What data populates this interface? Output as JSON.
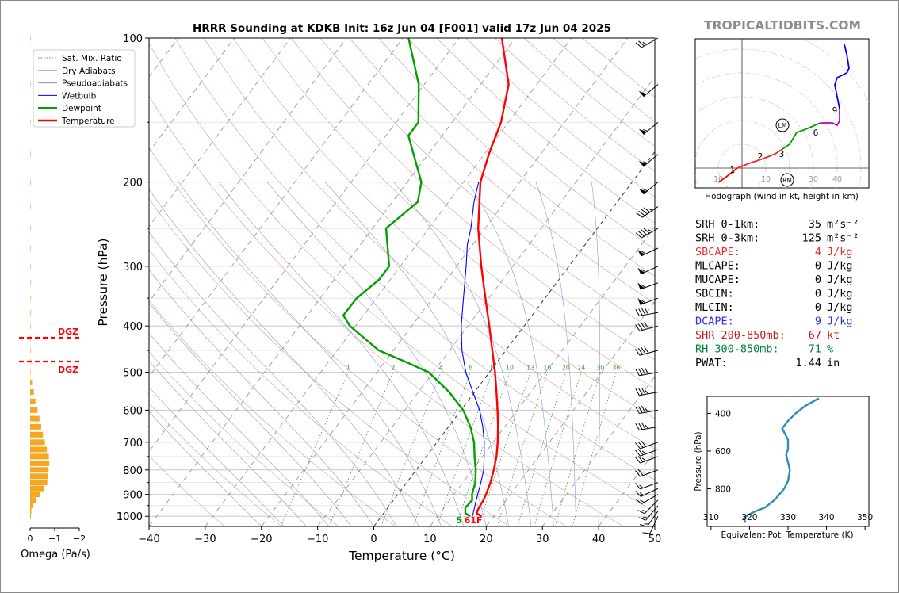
{
  "header": {
    "title": "HRRR Sounding at KDKB Init: 16z Jun 04 [F001] valid 17z Jun 04 2025",
    "watermark": "TROPICALTIDBITS.COM"
  },
  "colors": {
    "temperature": "#ff0000",
    "dewpoint": "#00a000",
    "wetbulb": "#0000ff",
    "omega_bar": "#f5a623",
    "theta_e": "#2e8fb0",
    "hodo_0_1": "#ff0000",
    "hodo_1_3": "#ff2020",
    "hodo_3_6": "#00a000",
    "hodo_6_9": "#c000c0",
    "hodo_9_12": "#0000ff",
    "dry_adiabat": "#d08080",
    "moist_adiabat": "#8080d0",
    "mixing_ratio": "#3a9a3a"
  },
  "legend": {
    "items": [
      {
        "label": "Sat. Mix. Ratio",
        "style": "dotted",
        "color": "#3a9a3a"
      },
      {
        "label": "Dry Adiabats",
        "style": "solid",
        "color": "#d09090"
      },
      {
        "label": "Pseudoadiabats",
        "style": "solid",
        "color": "#9090c0"
      },
      {
        "label": "Wetbulb",
        "style": "solid",
        "color": "#0000ff"
      },
      {
        "label": "Dewpoint",
        "style": "bold",
        "color": "#00a000"
      },
      {
        "label": "Temperature",
        "style": "bold",
        "color": "#ff0000"
      }
    ]
  },
  "chart_data": [
    {
      "type": "line",
      "name": "skew-t",
      "xlabel": "Temperature (°C)",
      "ylabel": "Pressure (hPa)",
      "xlim": [
        -40,
        50
      ],
      "ylim": [
        1050,
        100
      ],
      "log_y": true,
      "skew_deg_per_decade": 45,
      "x_ticks": [
        -40,
        -30,
        -20,
        -10,
        0,
        10,
        20,
        30,
        40,
        50
      ],
      "y_ticks": [
        100,
        200,
        300,
        400,
        500,
        600,
        700,
        800,
        900,
        1000
      ],
      "mixing_ratio_labels": [
        "1",
        "2",
        "4",
        "6",
        "8",
        "10",
        "13",
        "16",
        "20",
        "24",
        "30",
        "36"
      ],
      "mixing_ratio_values": [
        1,
        2,
        4,
        6,
        8,
        10,
        13,
        16,
        20,
        24,
        30,
        36
      ],
      "surface_dewpoint_label": "5",
      "surface_temp_label": "61F",
      "series": [
        {
          "name": "Temperature",
          "points": [
            [
              1000,
              17.8
            ],
            [
              985,
              16.5
            ],
            [
              960,
              16.2
            ],
            [
              925,
              16.0
            ],
            [
              900,
              15.7
            ],
            [
              850,
              14.9
            ],
            [
              800,
              13.8
            ],
            [
              750,
              12.5
            ],
            [
              700,
              10.8
            ],
            [
              650,
              8.8
            ],
            [
              600,
              6.5
            ],
            [
              550,
              3.9
            ],
            [
              500,
              1.0
            ],
            [
              450,
              -2.4
            ],
            [
              400,
              -6.2
            ],
            [
              350,
              -10.6
            ],
            [
              300,
              -15.6
            ],
            [
              250,
              -21.2
            ],
            [
              200,
              -27.0
            ],
            [
              175,
              -29.2
            ],
            [
              150,
              -31.3
            ],
            [
              125,
              -35.0
            ],
            [
              100,
              -42.4
            ]
          ]
        },
        {
          "name": "Dewpoint",
          "points": [
            [
              1000,
              15.8
            ],
            [
              985,
              14.5
            ],
            [
              960,
              13.8
            ],
            [
              925,
              14.0
            ],
            [
              900,
              13.2
            ],
            [
              850,
              12.2
            ],
            [
              800,
              10.6
            ],
            [
              750,
              8.6
            ],
            [
              700,
              6.6
            ],
            [
              650,
              3.9
            ],
            [
              600,
              0.4
            ],
            [
              550,
              -4.5
            ],
            [
              500,
              -10.8
            ],
            [
              475,
              -16.4
            ],
            [
              450,
              -22.6
            ],
            [
              420,
              -27.5
            ],
            [
              400,
              -31.0
            ],
            [
              380,
              -33.6
            ],
            [
              350,
              -33.5
            ],
            [
              320,
              -32.0
            ],
            [
              300,
              -32.0
            ],
            [
              250,
              -37.6
            ],
            [
              220,
              -35.5
            ],
            [
              200,
              -37.5
            ],
            [
              160,
              -46.0
            ],
            [
              150,
              -46.0
            ],
            [
              125,
              -51.0
            ],
            [
              100,
              -59.0
            ]
          ]
        },
        {
          "name": "Wetbulb",
          "points": [
            [
              1000,
              16.2
            ],
            [
              925,
              14.7
            ],
            [
              850,
              13.2
            ],
            [
              800,
              12.0
            ],
            [
              750,
              10.3
            ],
            [
              700,
              8.4
            ],
            [
              650,
              6.1
            ],
            [
              600,
              3.3
            ],
            [
              550,
              -0.3
            ],
            [
              500,
              -4.2
            ],
            [
              450,
              -7.8
            ],
            [
              400,
              -11.2
            ],
            [
              350,
              -14.5
            ],
            [
              300,
              -18.3
            ],
            [
              270,
              -21.0
            ],
            [
              250,
              -22.5
            ],
            [
              220,
              -25.5
            ],
            [
              200,
              -27.3
            ]
          ]
        }
      ]
    },
    {
      "type": "bar",
      "name": "omega",
      "xlabel": "Omega (Pa/s)",
      "x_ticks": [
        "0",
        "−1",
        "−2"
      ],
      "xlim": [
        0.2,
        -2.2
      ],
      "dgz_label_upper": "DGZ",
      "dgz_label_lower": "DGZ",
      "dgz_pressures": [
        425,
        475
      ],
      "levels": [
        1000,
        975,
        950,
        925,
        900,
        875,
        850,
        825,
        800,
        775,
        750,
        725,
        700,
        675,
        650,
        625,
        600,
        575,
        550,
        525,
        500,
        475,
        450,
        425,
        400,
        375,
        350,
        325,
        300,
        275,
        250,
        225,
        200,
        175,
        150,
        125,
        100
      ],
      "values": [
        -0.01,
        -0.05,
        -0.12,
        -0.25,
        -0.4,
        -0.58,
        -0.7,
        -0.72,
        -0.75,
        -0.78,
        -0.76,
        -0.68,
        -0.6,
        -0.52,
        -0.45,
        -0.38,
        -0.3,
        -0.22,
        -0.15,
        -0.08,
        -0.03,
        -0.01,
        -0.01,
        -0.02,
        -0.02,
        -0.04,
        -0.04,
        -0.04,
        -0.03,
        -0.03,
        -0.01,
        -0.01,
        -0.01,
        0,
        0,
        0,
        0
      ]
    },
    {
      "type": "line",
      "name": "hodograph",
      "caption": "Hodograph (wind in kt, height in km)",
      "ring_labels": [
        "10",
        "10",
        "20",
        "30",
        "40"
      ],
      "rings_kt": [
        10,
        20,
        30,
        40,
        50,
        60
      ],
      "height_labels": [
        "1",
        "2",
        "3",
        "6",
        "9"
      ],
      "storm_markers": [
        "LM",
        "RM"
      ],
      "x": [
        -10,
        -7,
        -2,
        3,
        9,
        14,
        17,
        20,
        23,
        26,
        33,
        38,
        40,
        41,
        41,
        39,
        40,
        44,
        45,
        44,
        43
      ],
      "y": [
        -6,
        -4,
        0,
        2,
        4,
        6,
        8,
        10,
        15,
        16,
        19,
        19,
        18,
        20,
        25,
        35,
        38,
        40,
        42,
        48,
        52
      ],
      "heights_km": [
        0,
        0.5,
        1,
        1.5,
        2,
        2.5,
        3,
        3.5,
        4,
        5,
        6,
        6.5,
        7,
        8,
        9,
        10,
        10.5,
        11,
        11.5,
        12,
        12.5
      ]
    },
    {
      "type": "line",
      "name": "theta-e",
      "xlabel": "Equivalent Pot. Temperature (K)",
      "ylabel": "Pressure (hPa)",
      "xlim": [
        309,
        351
      ],
      "ylim": [
        1000,
        310
      ],
      "x_ticks": [
        310,
        320,
        330,
        340,
        350
      ],
      "y_ticks": [
        400,
        600,
        800
      ],
      "points": [
        [
          980,
          319.0
        ],
        [
          960,
          318.5
        ],
        [
          940,
          319.5
        ],
        [
          920,
          321.5
        ],
        [
          900,
          324.0
        ],
        [
          860,
          326.5
        ],
        [
          800,
          329.0
        ],
        [
          760,
          330.0
        ],
        [
          700,
          330.5
        ],
        [
          660,
          330.0
        ],
        [
          620,
          329.5
        ],
        [
          590,
          330.0
        ],
        [
          540,
          330.0
        ],
        [
          480,
          328.5
        ],
        [
          440,
          330.0
        ],
        [
          400,
          332.0
        ],
        [
          360,
          334.5
        ],
        [
          320,
          338.0
        ]
      ]
    }
  ],
  "wind_barbs": [
    {
      "p": 1000,
      "dir": 205,
      "kt": 10
    },
    {
      "p": 975,
      "dir": 215,
      "kt": 13
    },
    {
      "p": 950,
      "dir": 220,
      "kt": 15
    },
    {
      "p": 925,
      "dir": 225,
      "kt": 15
    },
    {
      "p": 900,
      "dir": 240,
      "kt": 15
    },
    {
      "p": 875,
      "dir": 245,
      "kt": 15
    },
    {
      "p": 850,
      "dir": 250,
      "kt": 15
    },
    {
      "p": 800,
      "dir": 250,
      "kt": 20
    },
    {
      "p": 750,
      "dir": 250,
      "kt": 25
    },
    {
      "p": 725,
      "dir": 250,
      "kt": 25
    },
    {
      "p": 700,
      "dir": 250,
      "kt": 30
    },
    {
      "p": 650,
      "dir": 260,
      "kt": 35
    },
    {
      "p": 600,
      "dir": 260,
      "kt": 35
    },
    {
      "p": 550,
      "dir": 260,
      "kt": 35
    },
    {
      "p": 500,
      "dir": 260,
      "kt": 40
    },
    {
      "p": 450,
      "dir": 255,
      "kt": 40
    },
    {
      "p": 400,
      "dir": 255,
      "kt": 40
    },
    {
      "p": 375,
      "dir": 260,
      "kt": 40
    },
    {
      "p": 350,
      "dir": 250,
      "kt": 55
    },
    {
      "p": 325,
      "dir": 250,
      "kt": 55
    },
    {
      "p": 300,
      "dir": 245,
      "kt": 55
    },
    {
      "p": 275,
      "dir": 245,
      "kt": 55
    },
    {
      "p": 250,
      "dir": 240,
      "kt": 45
    },
    {
      "p": 225,
      "dir": 235,
      "kt": 45
    },
    {
      "p": 200,
      "dir": 230,
      "kt": 55
    },
    {
      "p": 175,
      "dir": 230,
      "kt": 55
    },
    {
      "p": 150,
      "dir": 230,
      "kt": 55
    },
    {
      "p": 125,
      "dir": 230,
      "kt": 50
    },
    {
      "p": 100,
      "dir": 240,
      "kt": 25
    }
  ],
  "indices": [
    {
      "label": "SRH 0-1km:",
      "value": "35",
      "unit": "m²s⁻²",
      "color": "#000000"
    },
    {
      "label": "SRH 0-3km:",
      "value": "125",
      "unit": "m²s⁻²",
      "color": "#000000"
    },
    {
      "label": "SBCAPE:",
      "value": "4",
      "unit": "J/kg",
      "color": "#e03030"
    },
    {
      "label": "MLCAPE:",
      "value": "0",
      "unit": "J/kg",
      "color": "#000000"
    },
    {
      "label": "MUCAPE:",
      "value": "0",
      "unit": "J/kg",
      "color": "#000000"
    },
    {
      "label": "SBCIN:",
      "value": "0",
      "unit": "J/kg",
      "color": "#000000"
    },
    {
      "label": "MLCIN:",
      "value": "0",
      "unit": "J/kg",
      "color": "#000000"
    },
    {
      "label": "DCAPE:",
      "value": "9",
      "unit": "J/kg",
      "color": "#3030e0"
    },
    {
      "label": "SHR 200-850mb:",
      "value": "67",
      "unit": "kt",
      "color": "#c02020"
    },
    {
      "label": "RH 300-850mb:",
      "value": "71",
      "unit": "%",
      "color": "#008040"
    },
    {
      "label": "PWAT:",
      "value": "1.44",
      "unit": "in",
      "color": "#000000"
    }
  ]
}
